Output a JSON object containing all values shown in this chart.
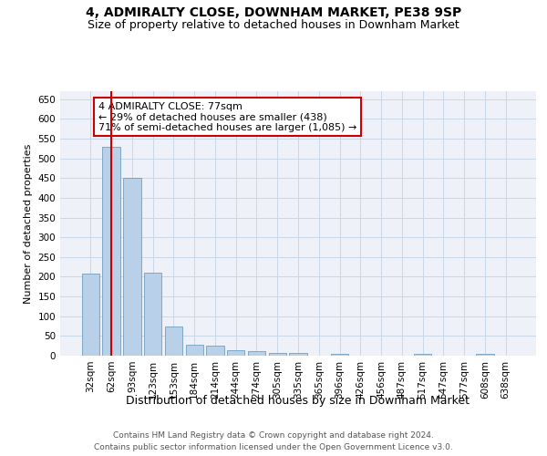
{
  "title": "4, ADMIRALTY CLOSE, DOWNHAM MARKET, PE38 9SP",
  "subtitle": "Size of property relative to detached houses in Downham Market",
  "xlabel": "Distribution of detached houses by size in Downham Market",
  "ylabel": "Number of detached properties",
  "categories": [
    "32sqm",
    "62sqm",
    "93sqm",
    "123sqm",
    "153sqm",
    "184sqm",
    "214sqm",
    "244sqm",
    "274sqm",
    "305sqm",
    "335sqm",
    "365sqm",
    "396sqm",
    "426sqm",
    "456sqm",
    "487sqm",
    "517sqm",
    "547sqm",
    "577sqm",
    "608sqm",
    "638sqm"
  ],
  "values": [
    207,
    530,
    450,
    210,
    75,
    27,
    26,
    14,
    11,
    8,
    7,
    0,
    5,
    0,
    0,
    0,
    4,
    0,
    0,
    4,
    0
  ],
  "bar_color": "#b8d0e8",
  "bar_edge_color": "#6090b8",
  "vline_x": 1,
  "vline_color": "#cc0000",
  "annotation_text": "4 ADMIRALTY CLOSE: 77sqm\n← 29% of detached houses are smaller (438)\n71% of semi-detached houses are larger (1,085) →",
  "annotation_box_color": "#ffffff",
  "annotation_box_edge_color": "#cc0000",
  "yticks": [
    0,
    50,
    100,
    150,
    200,
    250,
    300,
    350,
    400,
    450,
    500,
    550,
    600,
    650
  ],
  "ylim": [
    0,
    670
  ],
  "grid_color": "#c8d8e8",
  "background_color": "#eef2f8",
  "footer_line1": "Contains HM Land Registry data © Crown copyright and database right 2024.",
  "footer_line2": "Contains public sector information licensed under the Open Government Licence v3.0.",
  "title_fontsize": 10,
  "subtitle_fontsize": 9,
  "xlabel_fontsize": 9,
  "ylabel_fontsize": 8,
  "tick_fontsize": 7.5,
  "annotation_fontsize": 8,
  "footer_fontsize": 6.5
}
